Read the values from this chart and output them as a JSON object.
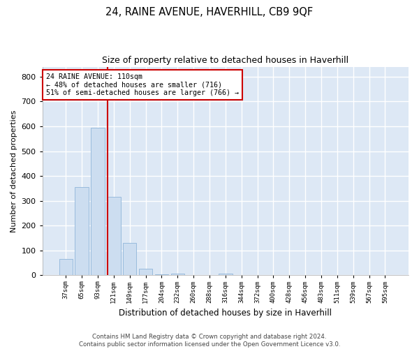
{
  "title": "24, RAINE AVENUE, HAVERHILL, CB9 9QF",
  "subtitle": "Size of property relative to detached houses in Haverhill",
  "xlabel": "Distribution of detached houses by size in Haverhill",
  "ylabel": "Number of detached properties",
  "footer_line1": "Contains HM Land Registry data © Crown copyright and database right 2024.",
  "footer_line2": "Contains public sector information licensed under the Open Government Licence v3.0.",
  "bin_labels": [
    "37sqm",
    "65sqm",
    "93sqm",
    "121sqm",
    "149sqm",
    "177sqm",
    "204sqm",
    "232sqm",
    "260sqm",
    "288sqm",
    "316sqm",
    "344sqm",
    "372sqm",
    "400sqm",
    "428sqm",
    "456sqm",
    "483sqm",
    "511sqm",
    "539sqm",
    "567sqm",
    "595sqm"
  ],
  "bar_values": [
    65,
    355,
    595,
    315,
    130,
    28,
    5,
    8,
    0,
    0,
    8,
    0,
    0,
    0,
    0,
    0,
    0,
    0,
    0,
    0,
    0
  ],
  "bar_color": "#ccddf0",
  "bar_edge_color": "#99bbdd",
  "background_color": "#dde8f5",
  "grid_color": "#ffffff",
  "red_line_x": 2.61,
  "annotation_text_line1": "24 RAINE AVENUE: 110sqm",
  "annotation_text_line2": "← 48% of detached houses are smaller (716)",
  "annotation_text_line3": "51% of semi-detached houses are larger (766) →",
  "annotation_box_color": "#cc0000",
  "ylim": [
    0,
    840
  ],
  "yticks": [
    0,
    100,
    200,
    300,
    400,
    500,
    600,
    700,
    800
  ],
  "figsize": [
    6.0,
    5.0
  ],
  "dpi": 100
}
